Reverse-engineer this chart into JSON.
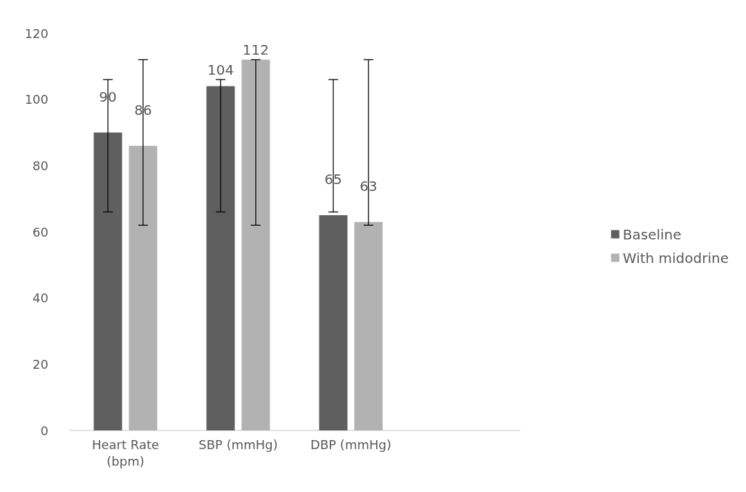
{
  "chart_data": {
    "type": "bar",
    "categories": [
      "Heart Rate\n(bpm)",
      "SBP (mmHg)",
      "DBP (mmHg)",
      null
    ],
    "series": [
      {
        "name": "Baseline",
        "color": "#5f5f5f",
        "values": [
          90,
          104,
          65,
          null
        ],
        "errors": [
          [
            66,
            106
          ],
          [
            66,
            106
          ],
          [
            66,
            106
          ],
          null
        ]
      },
      {
        "name": "With midodrine",
        "color": "#b2b2b2",
        "values": [
          86,
          112,
          63,
          null
        ],
        "errors": [
          [
            62,
            112
          ],
          [
            62,
            112
          ],
          [
            62,
            112
          ],
          null
        ]
      }
    ],
    "ylim": [
      0,
      120
    ],
    "yticks": [
      0,
      20,
      40,
      60,
      80,
      100,
      120
    ],
    "grid": false,
    "legend": "right",
    "data_labels": true
  }
}
